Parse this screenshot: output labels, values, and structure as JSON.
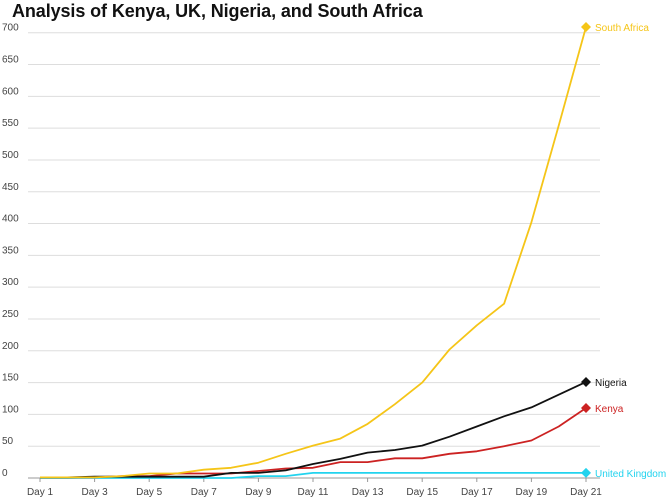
{
  "chart_data": {
    "type": "line",
    "title": "Analysis of Kenya, UK, Nigeria, and South Africa",
    "xlabel": "",
    "ylabel": "",
    "ylim": [
      0,
      720
    ],
    "y_ticks": [
      0,
      50,
      100,
      150,
      200,
      250,
      300,
      350,
      400,
      450,
      500,
      550,
      600,
      650,
      700
    ],
    "grid": true,
    "legend": "direct labels at line ends (right)",
    "x": [
      "Day 1",
      "Day 2",
      "Day 3",
      "Day 4",
      "Day 5",
      "Day 6",
      "Day 7",
      "Day 8",
      "Day 9",
      "Day 10",
      "Day 11",
      "Day 12",
      "Day 13",
      "Day 14",
      "Day 15",
      "Day 16",
      "Day 17",
      "Day 18",
      "Day 19",
      "Day 20",
      "Day 21"
    ],
    "x_tick_labels": [
      "Day 1",
      "",
      "Day 3",
      "",
      "Day 5",
      "",
      "Day 7",
      "",
      "Day 9",
      "",
      "Day 11",
      "",
      "Day 13",
      "",
      "Day 15",
      "",
      "Day 17",
      "",
      "Day 19",
      "",
      "Day 21"
    ],
    "series": [
      {
        "name": "South Africa",
        "color": "#f5c518",
        "marker": "diamond",
        "values": [
          1,
          1,
          1,
          3,
          7,
          7,
          13,
          16,
          24,
          38,
          51,
          62,
          85,
          116,
          150,
          202,
          240,
          274,
          402,
          554,
          709
        ]
      },
      {
        "name": "Nigeria",
        "color": "#111111",
        "marker": "diamond",
        "values": [
          1,
          1,
          2,
          2,
          2,
          2,
          2,
          8,
          8,
          12,
          22,
          30,
          40,
          44,
          51,
          65,
          81,
          97,
          111,
          131,
          151
        ]
      },
      {
        "name": "Kenya",
        "color": "#cc2222",
        "marker": "diamond",
        "values": [
          1,
          1,
          1,
          3,
          3,
          7,
          7,
          7,
          11,
          15,
          16,
          25,
          25,
          31,
          31,
          38,
          42,
          50,
          59,
          81,
          110
        ]
      },
      {
        "name": "United Kingdom",
        "color": "#22d3ee",
        "marker": "diamond",
        "values": [
          0,
          0,
          0,
          0,
          0,
          0,
          0,
          0,
          3,
          3,
          8,
          8,
          8,
          8,
          8,
          8,
          8,
          8,
          8,
          8,
          8
        ]
      }
    ]
  }
}
